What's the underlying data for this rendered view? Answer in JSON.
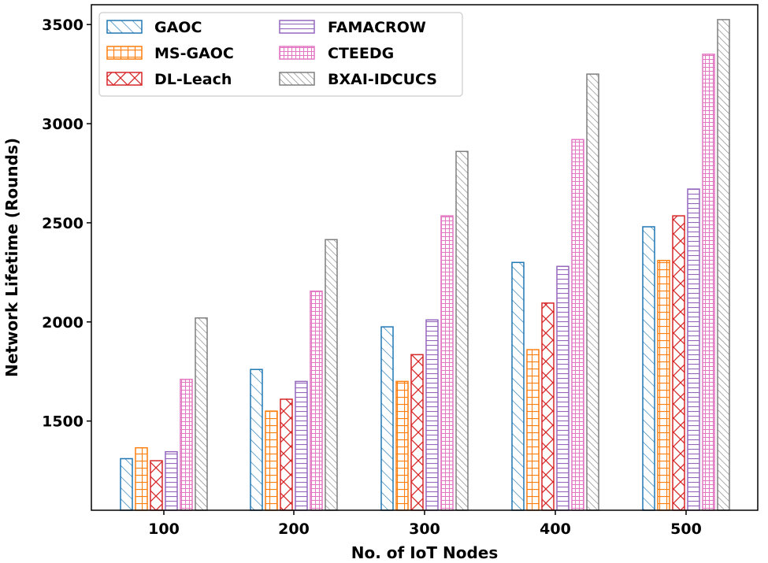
{
  "chart_data": {
    "type": "bar",
    "xlabel": "No. of IoT Nodes",
    "ylabel": "Network Lifetime (Rounds)",
    "categories": [
      "100",
      "200",
      "300",
      "400",
      "500"
    ],
    "ylim": [
      1050,
      3600
    ],
    "yticks": [
      1500,
      2000,
      2500,
      3000,
      3500
    ],
    "grid": false,
    "legend_position": "top-left",
    "series": [
      {
        "name": "GAOC",
        "color": "#1f77b4",
        "hatch": "diagonal-back",
        "values": [
          1310,
          1760,
          1975,
          2300,
          2480
        ]
      },
      {
        "name": "MS-GAOC",
        "color": "#ff7f0e",
        "hatch": "grid",
        "values": [
          1365,
          1550,
          1700,
          1860,
          2310
        ]
      },
      {
        "name": "DL-Leach",
        "color": "#d62728",
        "hatch": "cross-diagonal",
        "values": [
          1300,
          1610,
          1835,
          2095,
          2535
        ]
      },
      {
        "name": "FAMACROW",
        "color": "#9467bd",
        "hatch": "horizontal",
        "values": [
          1345,
          1700,
          2010,
          2280,
          2670
        ]
      },
      {
        "name": "CTEEDG",
        "color": "#e377c2",
        "hatch": "dense-grid",
        "values": [
          1710,
          2155,
          2535,
          2920,
          3350
        ]
      },
      {
        "name": "BXAI-IDCUCS",
        "color": "#7f7f7f",
        "hatch": "diagonal-back-dense",
        "values": [
          2020,
          2415,
          2860,
          3250,
          3525
        ]
      }
    ]
  }
}
